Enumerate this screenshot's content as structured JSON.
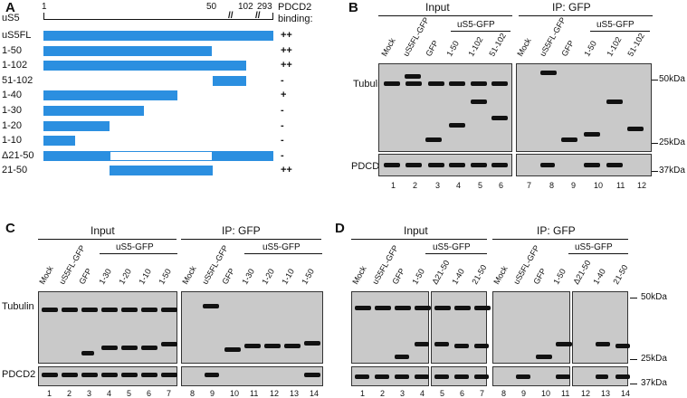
{
  "panelA": {
    "label": "A",
    "protein": "uS5",
    "scale_ticks": [
      "1",
      "50",
      "102",
      "293"
    ],
    "binding_header": [
      "PDCD2",
      "binding:"
    ],
    "constructs": [
      {
        "name": "uS5FL",
        "binding": "++"
      },
      {
        "name": "1-50",
        "binding": "++"
      },
      {
        "name": "1-102",
        "binding": "++"
      },
      {
        "name": "51-102",
        "binding": "-"
      },
      {
        "name": "1-40",
        "binding": "+"
      },
      {
        "name": "1-30",
        "binding": "-"
      },
      {
        "name": "1-20",
        "binding": "-"
      },
      {
        "name": "1-10",
        "binding": "-"
      },
      {
        "name": "Δ21-50",
        "binding": "-"
      },
      {
        "name": "21-50",
        "binding": "++"
      }
    ]
  },
  "panelB": {
    "label": "B",
    "input_header": "Input",
    "ip_header": "IP: GFP",
    "group_header": "uS5-GFP",
    "lanes": [
      "Mock",
      "uS5FL-GFP",
      "GFP",
      "1-50",
      "1-102",
      "51-102"
    ],
    "row_labels": [
      "Tubulin",
      "PDCD2"
    ],
    "markers": [
      "50kDa",
      "25kDa",
      "37kDa"
    ],
    "lane_numbers": [
      "1",
      "2",
      "3",
      "4",
      "5",
      "6",
      "7",
      "8",
      "9",
      "10",
      "11",
      "12"
    ]
  },
  "panelC": {
    "label": "C",
    "input_header": "Input",
    "ip_header": "IP: GFP",
    "group_header": "uS5-GFP",
    "lanes": [
      "Mock",
      "uS5FL-GFP",
      "GFP",
      "1-30",
      "1-20",
      "1-10",
      "1-50"
    ],
    "row_labels": [
      "Tubulin",
      "PDCD2"
    ],
    "lane_numbers": [
      "1",
      "2",
      "3",
      "4",
      "5",
      "6",
      "7",
      "8",
      "9",
      "10",
      "11",
      "12",
      "13",
      "14"
    ]
  },
  "panelD": {
    "label": "D",
    "input_header": "Input",
    "ip_header": "IP: GFP",
    "group_header": "uS5-GFP",
    "lanes": [
      "Mock",
      "uS5FL-GFP",
      "GFP",
      "1-50",
      "Δ21-50",
      "1-40",
      "21-50"
    ],
    "markers": [
      "50kDa",
      "25kDa",
      "37kDa"
    ],
    "lane_numbers": [
      "1",
      "2",
      "3",
      "4",
      "5",
      "6",
      "7",
      "8",
      "9",
      "10",
      "11",
      "12",
      "13",
      "14"
    ]
  }
}
